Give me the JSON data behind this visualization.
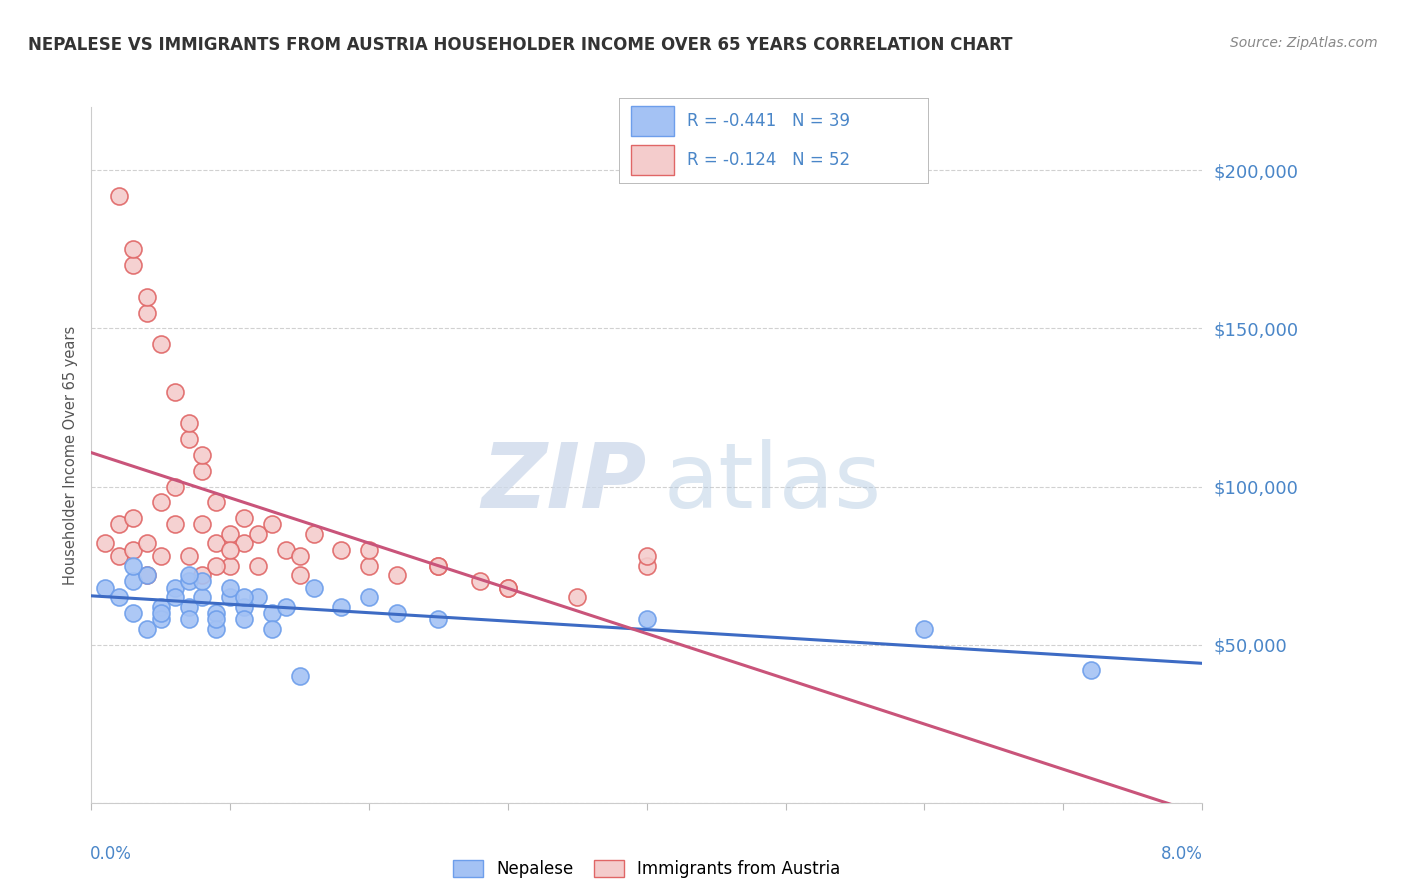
{
  "title": "NEPALESE VS IMMIGRANTS FROM AUSTRIA HOUSEHOLDER INCOME OVER 65 YEARS CORRELATION CHART",
  "source": "Source: ZipAtlas.com",
  "ylabel": "Householder Income Over 65 years",
  "legend_nepalese": "Nepalese",
  "legend_austria": "Immigrants from Austria",
  "R_nepalese": "-0.441",
  "N_nepalese": "39",
  "R_austria": "-0.124",
  "N_austria": "52",
  "color_blue_fill": "#a4c2f4",
  "color_blue_edge": "#6d9eeb",
  "color_pink_fill": "#f4cccc",
  "color_pink_edge": "#e06666",
  "color_blue_line": "#3d6bc4",
  "color_pink_line": "#c9547a",
  "color_ytick": "#4a86c8",
  "bg_color": "#ffffff",
  "grid_color": "#cccccc",
  "xmin": 0.0,
  "xmax": 0.08,
  "ymin": 0,
  "ymax": 220000,
  "ytick_vals": [
    0,
    50000,
    100000,
    150000,
    200000
  ],
  "nepalese_x": [
    0.001,
    0.002,
    0.003,
    0.003,
    0.004,
    0.004,
    0.005,
    0.005,
    0.006,
    0.006,
    0.007,
    0.007,
    0.007,
    0.008,
    0.008,
    0.009,
    0.009,
    0.01,
    0.01,
    0.011,
    0.011,
    0.012,
    0.013,
    0.014,
    0.015,
    0.016,
    0.018,
    0.02,
    0.022,
    0.025,
    0.003,
    0.005,
    0.007,
    0.009,
    0.011,
    0.013,
    0.06,
    0.072,
    0.04
  ],
  "nepalese_y": [
    68000,
    65000,
    70000,
    60000,
    72000,
    55000,
    62000,
    58000,
    68000,
    65000,
    70000,
    62000,
    58000,
    65000,
    70000,
    60000,
    55000,
    65000,
    68000,
    62000,
    58000,
    65000,
    60000,
    62000,
    40000,
    68000,
    62000,
    65000,
    60000,
    58000,
    75000,
    60000,
    72000,
    58000,
    65000,
    55000,
    55000,
    42000,
    58000
  ],
  "austria_x": [
    0.001,
    0.002,
    0.002,
    0.003,
    0.003,
    0.004,
    0.004,
    0.005,
    0.005,
    0.006,
    0.006,
    0.007,
    0.007,
    0.008,
    0.008,
    0.008,
    0.009,
    0.009,
    0.01,
    0.01,
    0.011,
    0.011,
    0.012,
    0.013,
    0.014,
    0.015,
    0.016,
    0.018,
    0.02,
    0.022,
    0.025,
    0.028,
    0.03,
    0.035,
    0.04,
    0.003,
    0.004,
    0.005,
    0.006,
    0.007,
    0.008,
    0.009,
    0.01,
    0.012,
    0.015,
    0.02,
    0.025,
    0.03,
    0.002,
    0.003,
    0.004,
    0.04
  ],
  "austria_y": [
    82000,
    78000,
    88000,
    80000,
    90000,
    82000,
    72000,
    95000,
    78000,
    100000,
    88000,
    115000,
    78000,
    105000,
    88000,
    72000,
    82000,
    95000,
    85000,
    75000,
    90000,
    82000,
    85000,
    88000,
    80000,
    78000,
    85000,
    80000,
    75000,
    72000,
    75000,
    70000,
    68000,
    65000,
    75000,
    170000,
    155000,
    145000,
    130000,
    120000,
    110000,
    75000,
    80000,
    75000,
    72000,
    80000,
    75000,
    68000,
    192000,
    175000,
    160000,
    78000
  ]
}
